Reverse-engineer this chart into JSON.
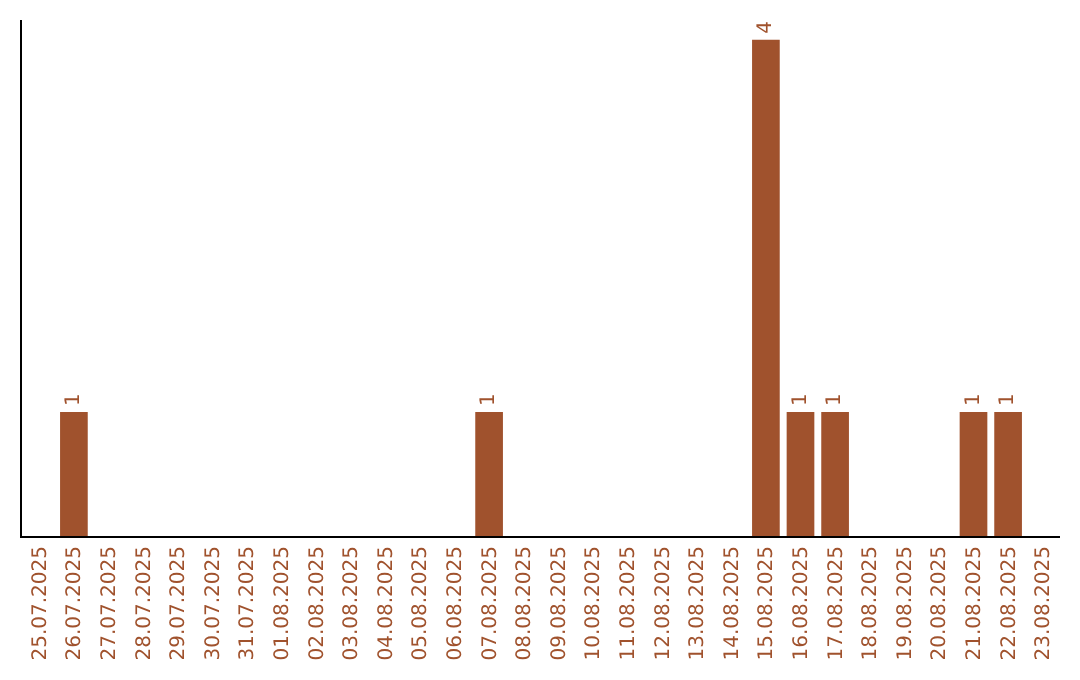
{
  "chart_data": {
    "type": "bar",
    "categories": [
      "25.07.2025",
      "26.07.2025",
      "27.07.2025",
      "28.07.2025",
      "29.07.2025",
      "30.07.2025",
      "31.07.2025",
      "01.08.2025",
      "02.08.2025",
      "03.08.2025",
      "04.08.2025",
      "05.08.2025",
      "06.08.2025",
      "07.08.2025",
      "08.08.2025",
      "09.08.2025",
      "10.08.2025",
      "11.08.2025",
      "12.08.2025",
      "13.08.2025",
      "14.08.2025",
      "15.08.2025",
      "16.08.2025",
      "17.08.2025",
      "18.08.2025",
      "19.08.2025",
      "20.08.2025",
      "21.08.2025",
      "22.08.2025",
      "23.08.2025"
    ],
    "values": [
      0,
      1,
      0,
      0,
      0,
      0,
      0,
      0,
      0,
      0,
      0,
      0,
      0,
      1,
      0,
      0,
      0,
      0,
      0,
      0,
      0,
      4,
      1,
      1,
      0,
      0,
      0,
      1,
      1,
      0
    ],
    "color": "#a0522d",
    "value_labels": [
      null,
      "1",
      null,
      null,
      null,
      null,
      null,
      null,
      null,
      null,
      null,
      null,
      null,
      "1",
      null,
      null,
      null,
      null,
      null,
      null,
      null,
      "4",
      "1",
      "1",
      null,
      null,
      null,
      "1",
      "1",
      null
    ]
  }
}
